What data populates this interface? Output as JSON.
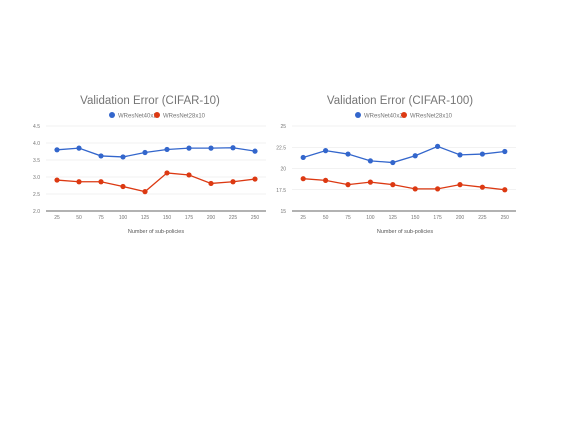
{
  "chart_data": [
    {
      "type": "line",
      "title": "Validation Error (CIFAR-10)",
      "xlabel": "Number of sub-policies",
      "ylabel": "",
      "categories": [
        "25",
        "50",
        "75",
        "100",
        "125",
        "150",
        "175",
        "200",
        "225",
        "250"
      ],
      "ylim": [
        2.0,
        4.5
      ],
      "yticks": [
        "2.0",
        "2.5",
        "3.0",
        "3.5",
        "4.0",
        "4.5"
      ],
      "grid": true,
      "legend_position": "top",
      "series": [
        {
          "name": "WResNet40x2",
          "color": "#3366cc",
          "values": [
            3.8,
            3.85,
            3.62,
            3.59,
            3.72,
            3.81,
            3.85,
            3.85,
            3.86,
            3.76
          ]
        },
        {
          "name": "WResNet28x10",
          "color": "#dc3912",
          "values": [
            2.91,
            2.86,
            2.86,
            2.72,
            2.57,
            3.12,
            3.06,
            2.81,
            2.86,
            2.94
          ]
        }
      ]
    },
    {
      "type": "line",
      "title": "Validation Error (CIFAR-100)",
      "xlabel": "Number of sub-policies",
      "ylabel": "",
      "categories": [
        "25",
        "50",
        "75",
        "100",
        "125",
        "150",
        "175",
        "200",
        "225",
        "250"
      ],
      "ylim": [
        15,
        25
      ],
      "yticks": [
        "15",
        "17.5",
        "20",
        "22.5",
        "25"
      ],
      "grid": true,
      "legend_position": "top",
      "series": [
        {
          "name": "WResNet40x2",
          "color": "#3366cc",
          "values": [
            21.3,
            22.1,
            21.7,
            20.9,
            20.7,
            21.5,
            22.6,
            21.6,
            21.7,
            22.0
          ]
        },
        {
          "name": "WResNet28x10",
          "color": "#dc3912",
          "values": [
            18.8,
            18.6,
            18.1,
            18.4,
            18.1,
            17.6,
            17.6,
            18.1,
            17.8,
            17.5
          ]
        }
      ]
    }
  ]
}
